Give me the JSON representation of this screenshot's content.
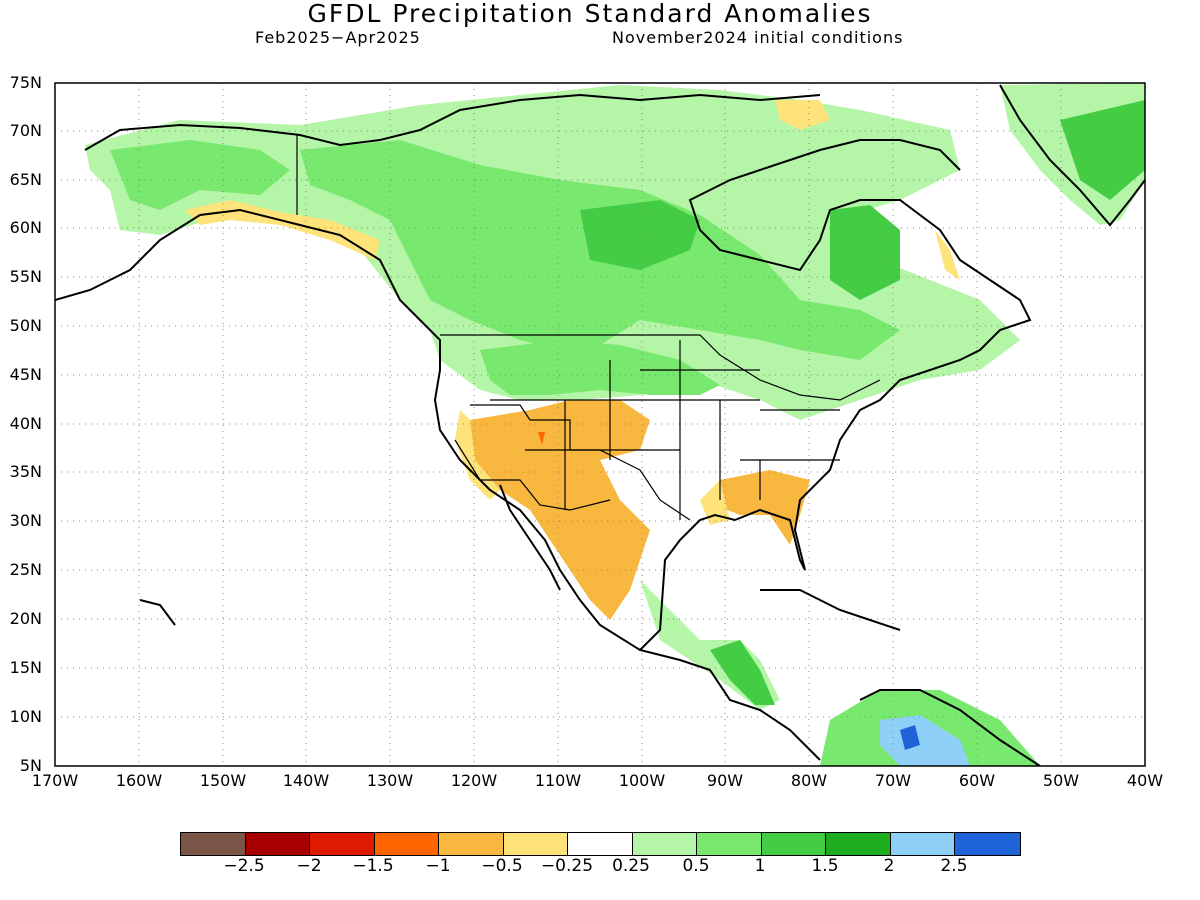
{
  "header": {
    "title": "GFDL Precipitation Standard Anomalies",
    "period": "Feb2025−Apr2025",
    "initial_conditions": "November2024 initial conditions"
  },
  "axes": {
    "latitude_labels": [
      "75N",
      "70N",
      "65N",
      "60N",
      "55N",
      "50N",
      "45N",
      "40N",
      "35N",
      "30N",
      "25N",
      "20N",
      "15N",
      "10N",
      "5N"
    ],
    "longitude_labels": [
      "170W",
      "160W",
      "150W",
      "140W",
      "130W",
      "120W",
      "110W",
      "100W",
      "90W",
      "80W",
      "70W",
      "60W",
      "50W",
      "40W"
    ],
    "lat_range": [
      5,
      75
    ],
    "lon_range": [
      -170,
      -40
    ],
    "grid": "dotted"
  },
  "colorbar": {
    "colors": [
      "#7b5548",
      "#a80000",
      "#e01a00",
      "#ff6600",
      "#f8b840",
      "#fde37a",
      "#ffffff",
      "#b4f5a8",
      "#78e86e",
      "#44cc44",
      "#1ead1e",
      "#8fd0f8",
      "#1e64d8"
    ],
    "labels": [
      "−2.5",
      "−2",
      "−1.5",
      "−1",
      "−0.5",
      "−0.25",
      "0.25",
      "0.5",
      "1",
      "1.5",
      "2",
      "2.5"
    ]
  },
  "anomaly_regions": {
    "wet": [
      "Alaska",
      "Canada",
      "Northern US Plains",
      "Greenland",
      "Caribbean",
      "Central America",
      "Northern South America"
    ],
    "dry": [
      "US Southwest",
      "Northern Mexico",
      "Southeast US",
      "Southern Alaska coast"
    ]
  }
}
